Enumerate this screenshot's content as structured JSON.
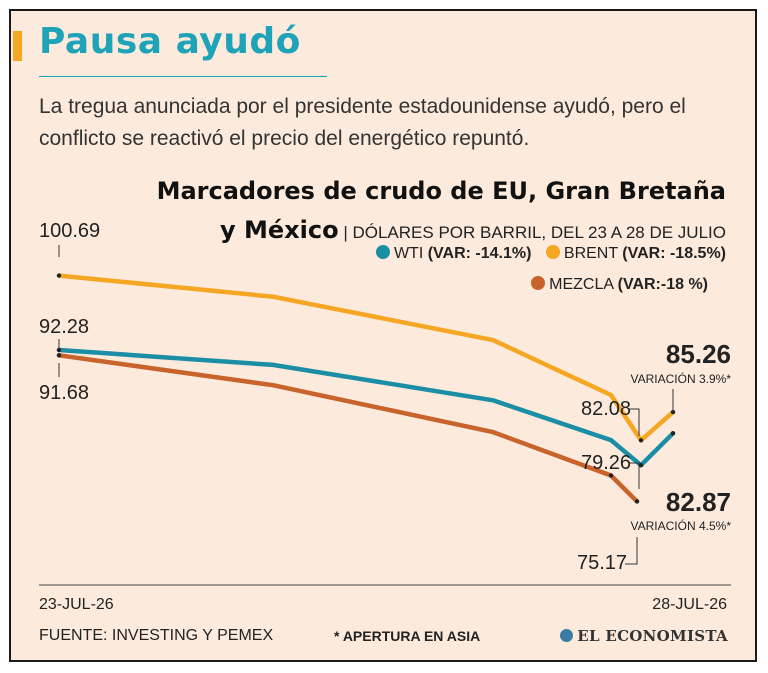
{
  "header": {
    "title": "Pausa ayudó",
    "subtitle": "La tregua anunciada por el presidente estadounidense ayudó, pero el conflicto se reactivó el precio del energético repuntó."
  },
  "chart_data": {
    "type": "line",
    "title_line1": "Marcadores de crudo de EU, Gran Bretaña",
    "title_line2": "y México",
    "subtitle": "DÓLARES POR BARRIL, DEL 23 A 28 DE JULIO",
    "x_labels": [
      "23-JUL-26",
      "28-JUL-26"
    ],
    "series": [
      {
        "name": "WTI",
        "var_label": "(VAR: -14.1%)",
        "color": "#1b8ea6",
        "values": [
          92.28,
          90.6,
          86.6,
          82.1,
          79.26,
          82.87
        ]
      },
      {
        "name": "BRENT",
        "var_label": "(VAR: -18.5%)",
        "color": "#f5a623",
        "values": [
          100.69,
          98.3,
          93.4,
          87.2,
          82.08,
          85.26
        ]
      },
      {
        "name": "MEZCLA",
        "var_label": "(VAR:-18 %)",
        "color": "#c8632b",
        "values": [
          91.68,
          88.3,
          83.0,
          78.1,
          75.17
        ]
      }
    ],
    "annotations": {
      "brent_start": "100.69",
      "wti_start": "92.28",
      "mezcla_start": "91.68",
      "brent_low": "82.08",
      "wti_low": "79.26",
      "mezcla_end": "75.17",
      "brent_end": "85.26",
      "brent_end_var": "VARIACIÓN 3.9%*",
      "wti_end": "82.87",
      "wti_end_var": "VARIACIÓN 4.5%*"
    }
  },
  "footer": {
    "source": "FUENTE: INVESTING Y PEMEX",
    "note": "* APERTURA EN ASIA",
    "brand": "EL ECONOMISTA"
  }
}
